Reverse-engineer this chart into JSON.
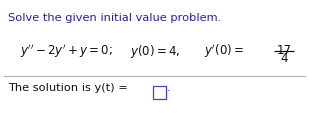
{
  "title": "Solve the given initial value problem.",
  "title_color": "#2222aa",
  "eq_color": "#111111",
  "bg_color": "#ffffff",
  "divider_color": "#b0b0b0",
  "frac_num": "17",
  "frac_den": "4"
}
